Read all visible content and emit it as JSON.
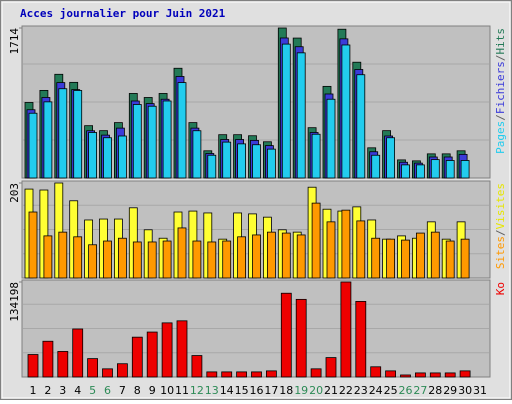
{
  "chart_data": {
    "type": "bar",
    "title": "Acces journalier pour Juin 2021",
    "categories": [
      "1",
      "2",
      "3",
      "4",
      "5",
      "6",
      "7",
      "8",
      "9",
      "10",
      "11",
      "12",
      "13",
      "14",
      "15",
      "16",
      "17",
      "18",
      "19",
      "20",
      "21",
      "22",
      "23",
      "24",
      "25",
      "26",
      "27",
      "28",
      "29",
      "30",
      "31"
    ],
    "weekend_days": [
      "5",
      "6",
      "12",
      "13",
      "19",
      "20",
      "26",
      "27"
    ],
    "weekday_color": "#000000",
    "weekend_color": "#2e8b57",
    "legend_separator": "/",
    "panels": [
      {
        "ylim": [
          0,
          1714
        ],
        "yticks": [
          1714
        ],
        "series": [
          {
            "name": "Hits",
            "color": "#237a57",
            "values": [
              863,
              1001,
              1185,
              1093,
              598,
              541,
              633,
              966,
              920,
              966,
              1254,
              633,
              311,
              495,
              495,
              483,
              414,
              1714,
              1599,
              575,
              1047,
              1700,
              1323,
              345,
              541,
              207,
              196,
              276,
              276,
              311,
              null
            ]
          },
          {
            "name": "Fichiers",
            "color": "#3b3bd9",
            "values": [
              780,
              920,
              1090,
              1010,
              540,
              490,
              570,
              880,
              850,
              900,
              1160,
              570,
              280,
              440,
              440,
              430,
              370,
              1600,
              1500,
              520,
              960,
              1590,
              1240,
              300,
              480,
              180,
              170,
              240,
              240,
              270,
              null
            ]
          },
          {
            "name": "Pages",
            "color": "#22ccee",
            "values": [
              740,
              870,
              1020,
              1000,
              520,
              460,
              480,
              840,
              820,
              880,
              1090,
              540,
              260,
              410,
              390,
              380,
              330,
              1530,
              1430,
              500,
              900,
              1520,
              1180,
              260,
              460,
              150,
              150,
              210,
              200,
              200,
              null
            ]
          }
        ]
      },
      {
        "ylim": [
          0,
          203
        ],
        "yticks": [
          203
        ],
        "series": [
          {
            "name": "Visites",
            "color": "#ffff33",
            "values": [
              190,
              188,
              203,
              165,
              124,
              126,
              126,
              150,
              103,
              85,
              141,
              143,
              139,
              83,
              139,
              137,
              130,
              103,
              98,
              194,
              147,
              143,
              152,
              124,
              83,
              90,
              85,
              120,
              83,
              120,
              null
            ]
          },
          {
            "name": "Sites",
            "color": "#ff9900",
            "values": [
              141,
              90,
              98,
              88,
              71,
              79,
              85,
              77,
              77,
              79,
              107,
              79,
              77,
              79,
              88,
              92,
              98,
              96,
              92,
              160,
              120,
              145,
              122,
              85,
              83,
              81,
              96,
              98,
              79,
              83,
              null
            ]
          }
        ]
      },
      {
        "ylim": [
          0,
          134198
        ],
        "yticks": [
          134198
        ],
        "series": [
          {
            "name": "Ko",
            "color": "#ee0000",
            "values": [
              31746,
              50505,
              36075,
              67821,
              25974,
              11544,
              18759,
              56277,
              63492,
              76479,
              79365,
              30303,
              7215,
              7215,
              7215,
              7215,
              8658,
              118326,
              109668,
              11544,
              27417,
              134198,
              106782,
              14430,
              8658,
              2886,
              5772,
              5772,
              5772,
              8658,
              null
            ]
          }
        ]
      }
    ]
  }
}
